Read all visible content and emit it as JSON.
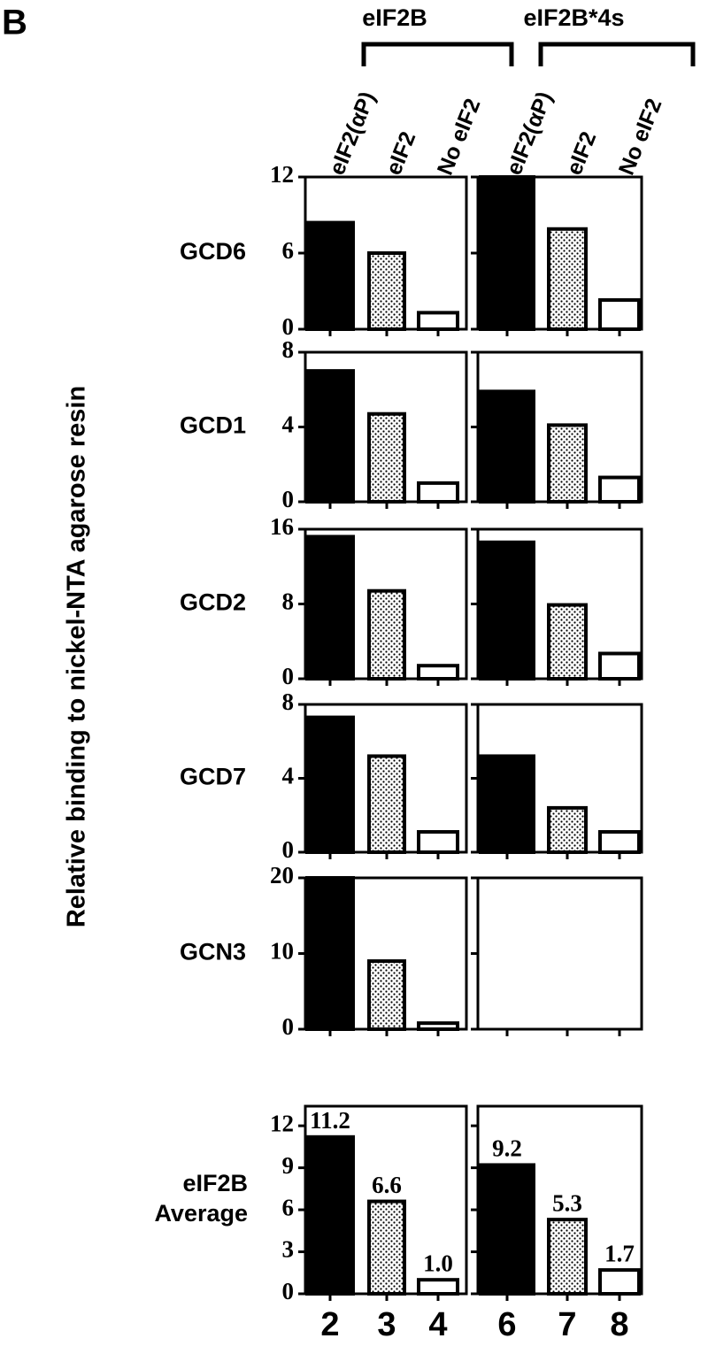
{
  "panel_label": "B",
  "ylabel": "Relative binding to nickel-NTA agarose resin",
  "conditions": [
    "eIF2(αP)",
    "eIF2",
    "No eIF2"
  ],
  "fills": [
    "solid",
    "dotted",
    "open"
  ],
  "groups": [
    {
      "name": "eIF2B",
      "lanes": [
        2,
        3,
        4
      ]
    },
    {
      "name": "eIF2B*4s",
      "lanes": [
        6,
        7,
        8
      ]
    }
  ],
  "chart_data": [
    {
      "type": "bar",
      "title": "GCD6",
      "ylim": [
        0,
        12
      ],
      "yticks": [
        0,
        6,
        12
      ],
      "panels": [
        [
          8.4,
          6.0,
          1.3
        ],
        [
          12,
          7.9,
          2.3
        ]
      ]
    },
    {
      "type": "bar",
      "title": "GCD1",
      "ylim": [
        0,
        8
      ],
      "yticks": [
        0,
        4,
        8
      ],
      "panels": [
        [
          7.0,
          4.7,
          1.0
        ],
        [
          5.9,
          4.1,
          1.3
        ]
      ]
    },
    {
      "type": "bar",
      "title": "GCD2",
      "ylim": [
        0,
        16
      ],
      "yticks": [
        0,
        8,
        16
      ],
      "panels": [
        [
          15.2,
          9.4,
          1.4
        ],
        [
          14.6,
          7.9,
          2.7
        ]
      ]
    },
    {
      "type": "bar",
      "title": "GCD7",
      "ylim": [
        0,
        8
      ],
      "yticks": [
        0,
        4,
        8
      ],
      "panels": [
        [
          7.3,
          5.2,
          1.1
        ],
        [
          5.2,
          2.4,
          1.1
        ]
      ]
    },
    {
      "type": "bar",
      "title": "GCN3",
      "ylim": [
        0,
        20
      ],
      "yticks": [
        0,
        10,
        20
      ],
      "panels": [
        [
          20,
          9.0,
          0.8
        ],
        [
          null,
          null,
          null
        ]
      ]
    },
    {
      "type": "bar",
      "title": [
        "eIF2B",
        "Average"
      ],
      "ylim": [
        0,
        13.4
      ],
      "yticks": [
        0,
        3,
        6,
        9,
        12
      ],
      "panels": [
        [
          11.2,
          6.6,
          1.0
        ],
        [
          9.2,
          5.3,
          1.7
        ]
      ],
      "value_labels": [
        [
          "11.2",
          "6.6",
          "1.0"
        ],
        [
          "9.2",
          "5.3",
          "1.7"
        ]
      ]
    }
  ]
}
